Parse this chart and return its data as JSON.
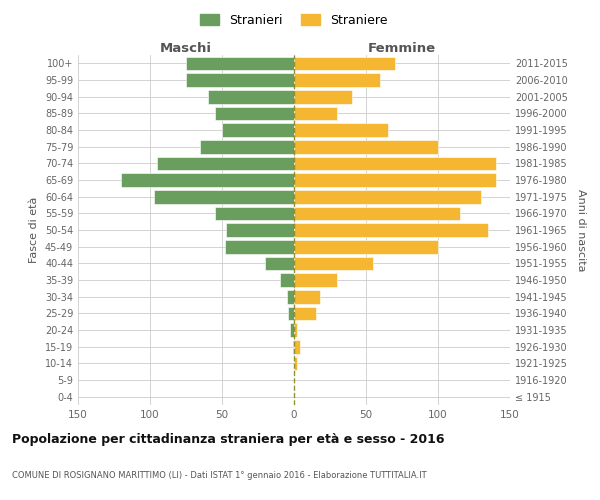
{
  "age_groups": [
    "0-4",
    "5-9",
    "10-14",
    "15-19",
    "20-24",
    "25-29",
    "30-34",
    "35-39",
    "40-44",
    "45-49",
    "50-54",
    "55-59",
    "60-64",
    "65-69",
    "70-74",
    "75-79",
    "80-84",
    "85-89",
    "90-94",
    "95-99",
    "100+"
  ],
  "birth_years": [
    "2011-2015",
    "2006-2010",
    "2001-2005",
    "1996-2000",
    "1991-1995",
    "1986-1990",
    "1981-1985",
    "1976-1980",
    "1971-1975",
    "1966-1970",
    "1961-1965",
    "1956-1960",
    "1951-1955",
    "1946-1950",
    "1941-1945",
    "1936-1940",
    "1931-1935",
    "1926-1930",
    "1921-1925",
    "1916-1920",
    "≤ 1915"
  ],
  "maschi": [
    75,
    75,
    60,
    55,
    50,
    65,
    95,
    120,
    97,
    55,
    47,
    48,
    20,
    10,
    5,
    4,
    3,
    1,
    0,
    0,
    0
  ],
  "femmine": [
    70,
    60,
    40,
    30,
    65,
    100,
    140,
    140,
    130,
    115,
    135,
    100,
    55,
    30,
    18,
    15,
    2,
    4,
    2,
    0,
    0
  ],
  "color_maschi": "#6a9e5e",
  "color_femmine": "#f5b731",
  "color_dashed": "#7a7a00",
  "grid_color": "#cccccc",
  "title": "Popolazione per cittadinanza straniera per età e sesso - 2016",
  "subtitle": "COMUNE DI ROSIGNANO MARITTIMO (LI) - Dati ISTAT 1° gennaio 2016 - Elaborazione TUTTITALIA.IT",
  "xlabel_left": "Maschi",
  "xlabel_right": "Femmine",
  "ylabel_left": "Fasce di età",
  "ylabel_right": "Anni di nascita",
  "legend_maschi": "Stranieri",
  "legend_femmine": "Straniere",
  "xlim": 150
}
